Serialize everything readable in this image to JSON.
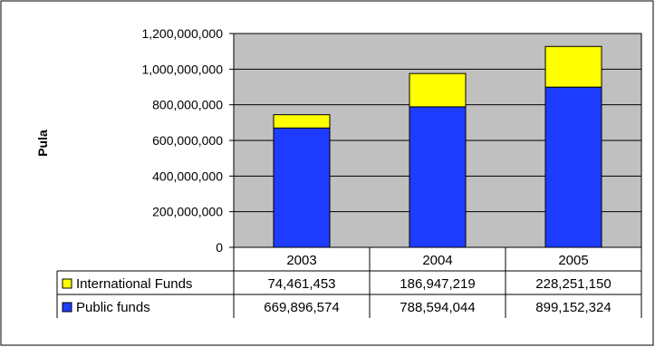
{
  "chart_data": {
    "type": "bar",
    "stacked": true,
    "ylabel": "Pula",
    "xlabel": "",
    "categories": [
      "2003",
      "2004",
      "2005"
    ],
    "ylim": [
      0,
      1200000000
    ],
    "yticks": [
      "0",
      "200,000,000",
      "400,000,000",
      "600,000,000",
      "800,000,000",
      "1,000,000,000",
      "1,200,000,000"
    ],
    "ytick_values": [
      0,
      200000000,
      400000000,
      600000000,
      800000000,
      1000000000,
      1200000000
    ],
    "grid": true,
    "plot_background": "#c0c0c0",
    "series": [
      {
        "name": "Public funds",
        "color": "#1e3cff",
        "values": [
          669896574,
          788594044,
          899152324
        ],
        "labels": [
          "669,896,574",
          "788,594,044",
          "899,152,324"
        ]
      },
      {
        "name": "International Funds",
        "color": "#ffff00",
        "values": [
          74461453,
          186947219,
          228251150
        ],
        "labels": [
          "74,461,453",
          "186,947,219",
          "228,251,150"
        ]
      }
    ],
    "legend": "data-table"
  }
}
